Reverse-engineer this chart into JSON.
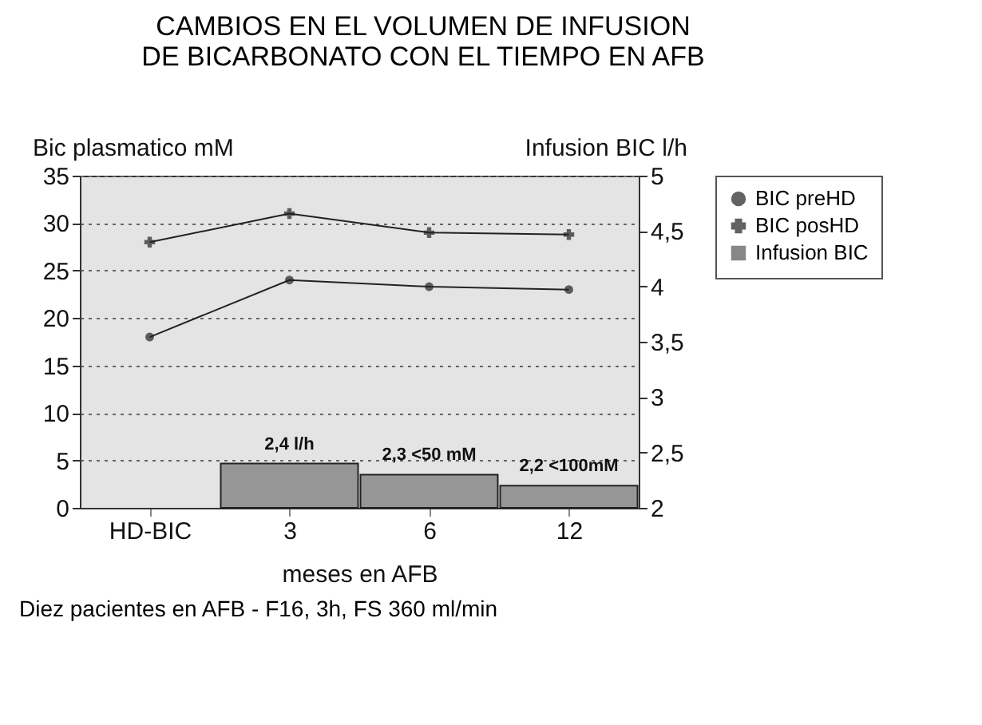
{
  "chart_data": {
    "type": "line",
    "title": "CAMBIOS EN EL VOLUMEN DE INFUSION\nDE BICARBONATO CON EL TIEMPO EN AFB",
    "xlabel": "meses en AFB",
    "ylabel": "Bic plasmatico mM",
    "y2label": "Infusion BIC l/h",
    "categories": [
      "HD-BIC",
      "3",
      "6",
      "12"
    ],
    "series": [
      {
        "name": "BIC preHD",
        "color": "#222222",
        "marker": "circle",
        "values": [
          18,
          24,
          23.3,
          23
        ]
      },
      {
        "name": "BIC posHD",
        "color": "#222222",
        "marker": "cross",
        "values": [
          28,
          31,
          29,
          28.8
        ]
      },
      {
        "name": "Infusion BIC",
        "type": "bar",
        "axis": "y2",
        "color": "#555555",
        "values": [
          null,
          2.4,
          2.3,
          2.2
        ],
        "value_labels": [
          null,
          "2,4 l/h",
          "2,3 <50 mM",
          "2,2 <100mM"
        ]
      }
    ],
    "ylim": [
      0,
      35
    ],
    "yticks": [
      0,
      5,
      10,
      15,
      20,
      25,
      30,
      35
    ],
    "y2lim": [
      2,
      5
    ],
    "y2ticks": [
      2,
      {
        "value": 2.5,
        "label": "2,5"
      },
      3,
      {
        "value": 3.5,
        "label": "3,5"
      },
      4,
      {
        "value": 4.5,
        "label": "4,5"
      },
      5
    ],
    "grid": "y",
    "legend": "right",
    "annotations": [
      "Diez pacientes en AFB - F16, 3h, FS 360 ml/min"
    ]
  }
}
